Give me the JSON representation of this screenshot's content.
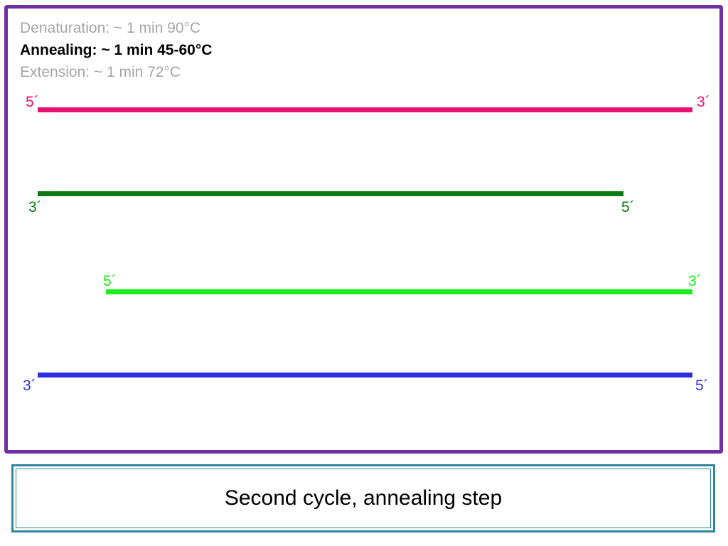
{
  "steps": [
    {
      "text": "Denaturation: ~ 1 min 90°C",
      "state": "inactive"
    },
    {
      "text": "Annealing: ~ 1 min 45-60°C",
      "state": "active"
    },
    {
      "text": "Extension: ~ 1 min 72°C",
      "state": "inactive"
    }
  ],
  "strands": [
    {
      "left_end": "5´",
      "right_end": "3´",
      "color": "#e8136e"
    },
    {
      "left_end": "3´",
      "right_end": "5´",
      "color": "#0b7a12"
    },
    {
      "left_end": "5´",
      "right_end": "3´",
      "color": "#1aeb1a"
    },
    {
      "left_end": "3´",
      "right_end": "5´",
      "color": "#3030e0"
    }
  ],
  "caption": "Second cycle, annealing step",
  "colors": {
    "frame": "#7030a0",
    "caption_border": "#31859c"
  }
}
